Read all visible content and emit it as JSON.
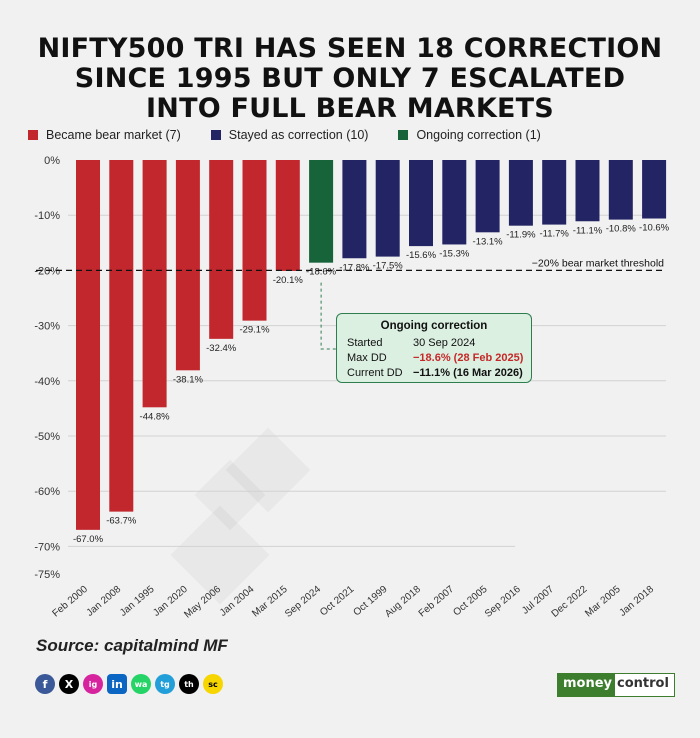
{
  "title_lines": [
    "NIFTY500 TRI HAS SEEN 18 CORRECTION",
    "SINCE 1995 BUT ONLY 7 ESCALATED",
    "INTO FULL BEAR MARKETS"
  ],
  "legend": [
    {
      "label": "Became bear market (7)",
      "color": "#c1272d"
    },
    {
      "label": "Stayed as correction (10)",
      "color": "#232463"
    },
    {
      "label": "Ongoing correction (1)",
      "color": "#17633a"
    }
  ],
  "threshold_label": "−20% bear market threshold",
  "annotation": {
    "title": "Ongoing correction",
    "rows": [
      {
        "label": "Started",
        "value": "30 Sep 2024"
      },
      {
        "label": "Max DD",
        "value": "−18.6%  (28 Feb 2025)"
      },
      {
        "label": "Current DD",
        "value": "−11.1%  (16 Mar 2026)"
      }
    ]
  },
  "source": "Source: capitalmind MF",
  "socials": [
    "f",
    "X",
    "ig",
    "in",
    "wa",
    "tg",
    "th",
    "sc"
  ],
  "brand": {
    "part1": "money",
    "part2": "control"
  },
  "chart_data": {
    "type": "bar",
    "categories": [
      "Feb 2000",
      "Jan 2008",
      "Jan 1995",
      "Jan 2020",
      "May 2006",
      "Jan 2004",
      "Mar 2015",
      "Sep 2024",
      "Oct 2021",
      "Oct 1999",
      "Aug 2018",
      "Feb 2007",
      "Oct 2005",
      "Sep 2016",
      "Jul 2007",
      "Dec 2022",
      "Mar 2005",
      "Jan 2018"
    ],
    "values": [
      -67.0,
      -63.7,
      -44.8,
      -38.1,
      -32.4,
      -29.1,
      -20.1,
      -18.6,
      -17.8,
      -17.5,
      -15.6,
      -15.3,
      -13.1,
      -11.9,
      -11.7,
      -11.1,
      -10.8,
      -10.6
    ],
    "value_labels": [
      "-67.0%",
      "-63.7%",
      "-44.8%",
      "-38.1%",
      "-32.4%",
      "-29.1%",
      "-20.1%",
      "-18.6%",
      "-17.8%",
      "-17.5%",
      "-15.6%",
      "-15.3%",
      "-13.1%",
      "-11.9%",
      "-11.7%",
      "-11.1%",
      "-10.8%",
      "-10.6%"
    ],
    "groups": [
      "bear",
      "bear",
      "bear",
      "bear",
      "bear",
      "bear",
      "bear",
      "ongoing",
      "correction",
      "correction",
      "correction",
      "correction",
      "correction",
      "correction",
      "correction",
      "correction",
      "correction",
      "correction"
    ],
    "y_ticks": [
      "0%",
      "-10%",
      "-20%",
      "-30%",
      "-40%",
      "-50%",
      "-60%",
      "-70%",
      "-75%"
    ],
    "y_tick_values": [
      0,
      -10,
      -20,
      -30,
      -40,
      -50,
      -60,
      -70,
      -75
    ],
    "ylim": [
      -75,
      0
    ],
    "threshold": -20,
    "colors": {
      "bear": "#c1272d",
      "correction": "#232463",
      "ongoing": "#17633a"
    }
  }
}
